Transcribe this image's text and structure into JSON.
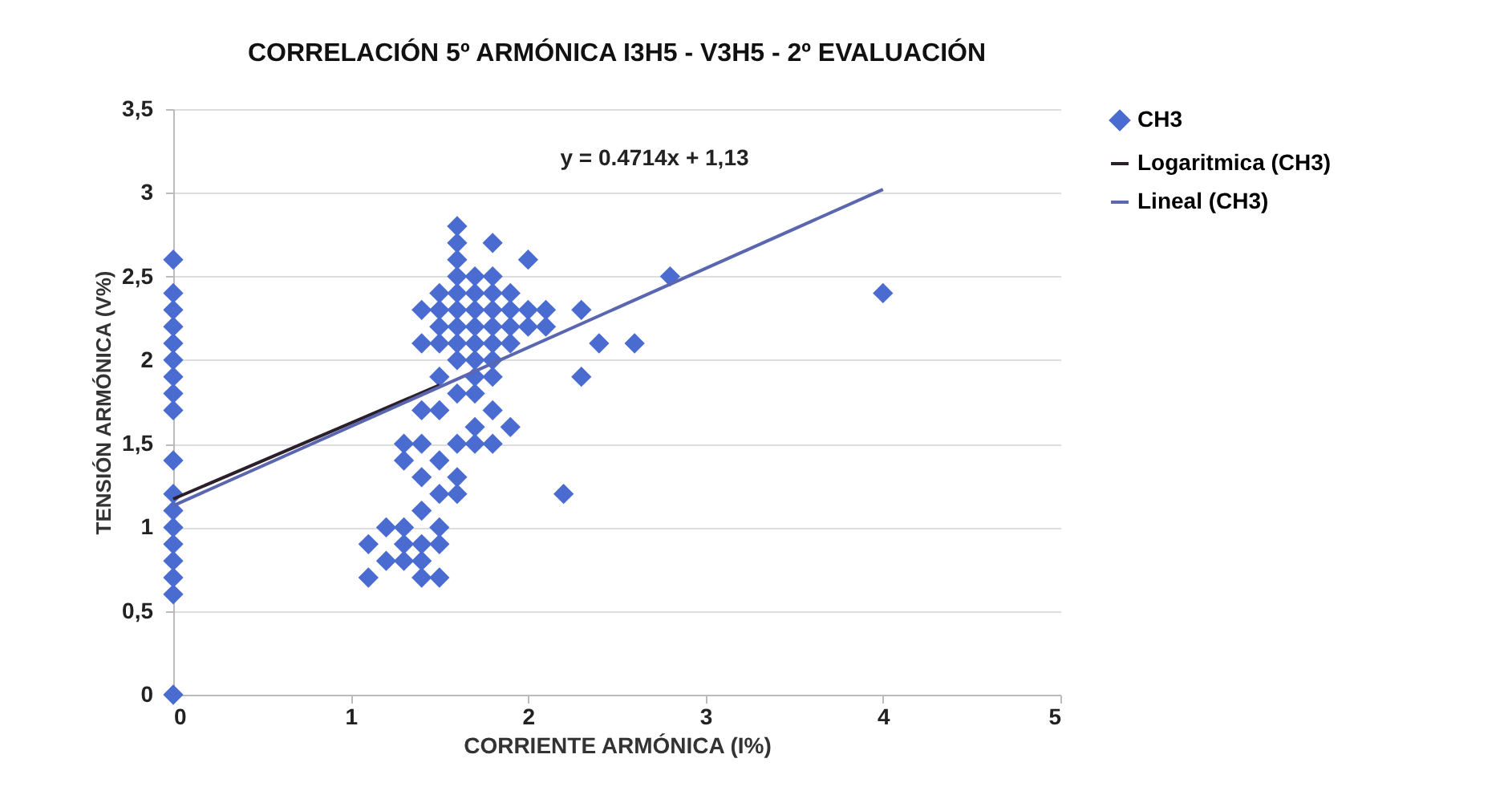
{
  "chart_data": {
    "type": "scatter",
    "title": "CORRELACIÓN 5º ARMÓNICA I3H5 - V3H5 - 2º EVALUACIÓN",
    "xlabel": "CORRIENTE ARMÓNICA (I%)",
    "ylabel": "TENSIÓN ARMÓNICA (V%)",
    "annotations": [
      "y = 0.4714x + 1,13"
    ],
    "xlim": [
      0,
      5
    ],
    "xticks": [
      0,
      1,
      2,
      3,
      4,
      5
    ],
    "ylim": [
      0,
      3.5
    ],
    "yticks": [
      {
        "value": 0,
        "label": "0"
      },
      {
        "value": 0.5,
        "label": "0,5"
      },
      {
        "value": 1,
        "label": "1"
      },
      {
        "value": 1.5,
        "label": "1,5"
      },
      {
        "value": 2,
        "label": "2"
      },
      {
        "value": 2.5,
        "label": "2,5"
      },
      {
        "value": 3,
        "label": "3"
      },
      {
        "value": 3.5,
        "label": "3,5"
      }
    ],
    "grid": "y",
    "legend": "right",
    "series": [
      {
        "name": "CH3",
        "color": "#4a6cd0",
        "marker": "diamond",
        "x": [
          0,
          0,
          0,
          0,
          0,
          0,
          0,
          0,
          0,
          0,
          0,
          0,
          0,
          0,
          0,
          0,
          0,
          0,
          1.1,
          1.1,
          1.2,
          1.2,
          1.3,
          1.3,
          1.3,
          1.4,
          1.4,
          1.4,
          1.4,
          1.5,
          1.5,
          1.5,
          1.5,
          1.4,
          1.3,
          1.3,
          1.4,
          1.5,
          1.6,
          1.6,
          1.7,
          1.6,
          1.7,
          1.8,
          1.8,
          1.9,
          1.5,
          1.6,
          1.7,
          1.7,
          1.8,
          1.6,
          1.7,
          1.8,
          1.5,
          1.4,
          1.6,
          1.7,
          1.8,
          1.9,
          1.4,
          1.5,
          1.6,
          1.7,
          1.8,
          1.9,
          2.0,
          2.1,
          1.5,
          1.6,
          1.7,
          1.8,
          1.9,
          1.6,
          1.7,
          1.8,
          1.6,
          1.6,
          1.6,
          1.8,
          2.0,
          1.9,
          2.0,
          2.1,
          1.5,
          1.6,
          1.7,
          1.8,
          2.3,
          2.3,
          2.4,
          2.6,
          2.2,
          2.8,
          4.0,
          1.5,
          1.4
        ],
        "values": [
          0,
          0.6,
          0.7,
          0.8,
          0.9,
          1.0,
          1.1,
          1.2,
          1.4,
          1.7,
          1.8,
          1.9,
          2.0,
          2.1,
          2.2,
          2.3,
          2.4,
          2.6,
          0.7,
          0.9,
          0.8,
          1.0,
          0.9,
          1.0,
          0.8,
          0.7,
          0.8,
          0.9,
          1.1,
          0.7,
          0.9,
          1.0,
          1.2,
          1.3,
          1.4,
          1.5,
          1.5,
          1.4,
          1.3,
          1.2,
          1.5,
          1.5,
          1.6,
          1.7,
          1.5,
          1.6,
          1.7,
          1.8,
          1.8,
          1.9,
          1.9,
          2.0,
          2.0,
          2.0,
          2.1,
          2.1,
          2.1,
          2.1,
          2.1,
          2.1,
          2.3,
          2.3,
          2.3,
          2.3,
          2.3,
          2.3,
          2.3,
          2.3,
          2.4,
          2.4,
          2.4,
          2.4,
          2.4,
          2.5,
          2.5,
          2.5,
          2.6,
          2.7,
          2.8,
          2.7,
          2.6,
          2.2,
          2.2,
          2.2,
          2.2,
          2.2,
          2.2,
          2.2,
          2.3,
          1.9,
          2.1,
          2.1,
          1.2,
          2.5,
          2.4,
          1.9,
          1.7
        ]
      },
      {
        "name": "Logaritmica (CH3)",
        "type": "line",
        "marker": "none",
        "color": "#2a1f2a",
        "x": [
          0,
          1.5
        ],
        "values": [
          1.17,
          1.85
        ]
      },
      {
        "name": "Lineal (CH3)",
        "type": "line",
        "marker": "none",
        "color": "#5a66b0",
        "x": [
          0,
          4
        ],
        "values": [
          1.13,
          3.02
        ]
      }
    ]
  }
}
